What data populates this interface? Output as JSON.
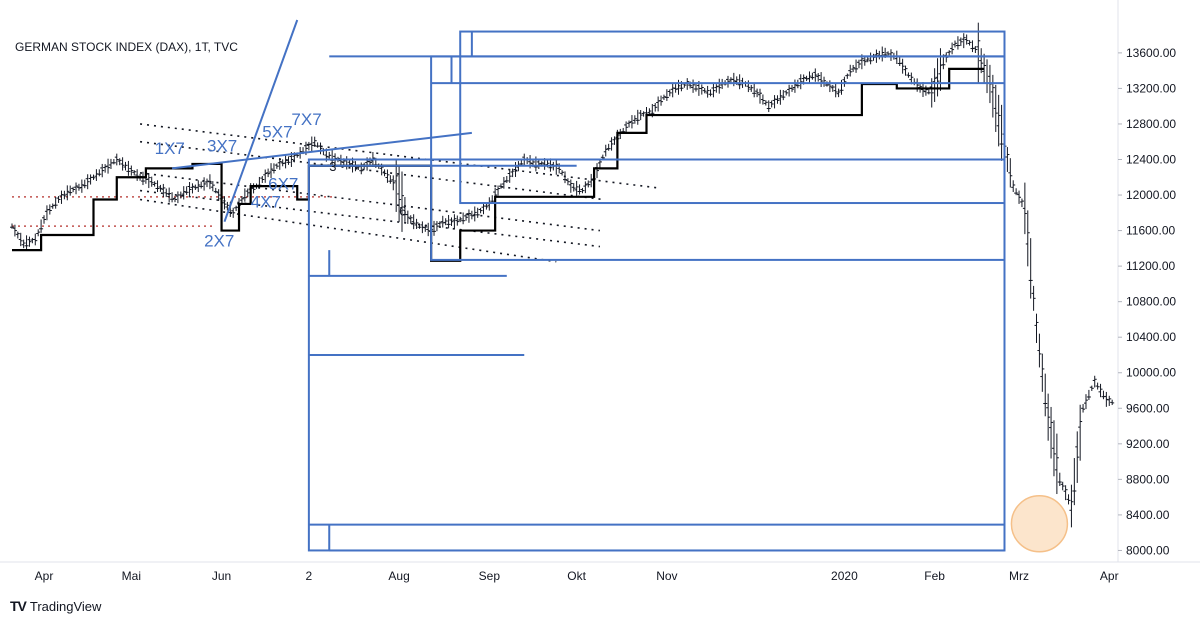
{
  "chart_data": {
    "type": "line",
    "title": "GERMAN STOCK INDEX (DAX), 1T, TVC",
    "y_axis": {
      "ticks": [
        8000,
        8400,
        8800,
        9200,
        9600,
        10000,
        10400,
        10800,
        11200,
        11600,
        12000,
        12400,
        12800,
        13200,
        13600
      ],
      "tick_labels": [
        "8000.00",
        "8400.00",
        "8800.00",
        "9200.00",
        "9600.00",
        "10000.00",
        "10400.00",
        "10800.00",
        "11200.00",
        "11600.00",
        "12000.00",
        "12400.00",
        "12800.00",
        "13200.00",
        "13600.00"
      ],
      "range": [
        7870,
        13970
      ]
    },
    "x_axis": {
      "labels": [
        "Apr",
        "Mai",
        "Jun",
        "2",
        "Aug",
        "Sep",
        "Okt",
        "Nov",
        "2020",
        "Feb",
        "Mrz",
        "Apr"
      ],
      "label_days": [
        11,
        41,
        72,
        102,
        133,
        164,
        194,
        225,
        286,
        317,
        346,
        377
      ],
      "range": [
        0,
        380
      ]
    },
    "series": [
      {
        "type": "daily-bars",
        "points": [
          [
            0,
            11650
          ],
          [
            4,
            11450
          ],
          [
            8,
            11500
          ],
          [
            12,
            11800
          ],
          [
            16,
            11950
          ],
          [
            20,
            12050
          ],
          [
            24,
            12100
          ],
          [
            28,
            12200
          ],
          [
            32,
            12300
          ],
          [
            36,
            12400
          ],
          [
            40,
            12300
          ],
          [
            44,
            12200
          ],
          [
            48,
            12150
          ],
          [
            52,
            12050
          ],
          [
            56,
            11950
          ],
          [
            60,
            12050
          ],
          [
            64,
            12100
          ],
          [
            68,
            12150
          ],
          [
            72,
            11950
          ],
          [
            76,
            11800
          ],
          [
            80,
            12000
          ],
          [
            84,
            12100
          ],
          [
            88,
            12250
          ],
          [
            92,
            12350
          ],
          [
            96,
            12400
          ],
          [
            100,
            12500
          ],
          [
            104,
            12600
          ],
          [
            108,
            12450
          ],
          [
            112,
            12400
          ],
          [
            116,
            12350
          ],
          [
            120,
            12300
          ],
          [
            124,
            12400
          ],
          [
            128,
            12250
          ],
          [
            132,
            12100
          ],
          [
            136,
            11750
          ],
          [
            140,
            11650
          ],
          [
            144,
            11600
          ],
          [
            148,
            11700
          ],
          [
            152,
            11700
          ],
          [
            156,
            11750
          ],
          [
            160,
            11800
          ],
          [
            164,
            11900
          ],
          [
            168,
            12100
          ],
          [
            172,
            12250
          ],
          [
            176,
            12400
          ],
          [
            180,
            12350
          ],
          [
            184,
            12350
          ],
          [
            188,
            12300
          ],
          [
            192,
            12100
          ],
          [
            196,
            12050
          ],
          [
            200,
            12200
          ],
          [
            204,
            12500
          ],
          [
            208,
            12650
          ],
          [
            212,
            12800
          ],
          [
            216,
            12900
          ],
          [
            220,
            12950
          ],
          [
            224,
            13100
          ],
          [
            228,
            13200
          ],
          [
            232,
            13250
          ],
          [
            236,
            13200
          ],
          [
            240,
            13150
          ],
          [
            244,
            13250
          ],
          [
            248,
            13300
          ],
          [
            252,
            13250
          ],
          [
            256,
            13150
          ],
          [
            260,
            13000
          ],
          [
            264,
            13100
          ],
          [
            268,
            13200
          ],
          [
            272,
            13300
          ],
          [
            276,
            13350
          ],
          [
            280,
            13250
          ],
          [
            284,
            13150
          ],
          [
            288,
            13400
          ],
          [
            292,
            13500
          ],
          [
            296,
            13550
          ],
          [
            300,
            13600
          ],
          [
            304,
            13550
          ],
          [
            308,
            13350
          ],
          [
            312,
            13200
          ],
          [
            316,
            13150
          ],
          [
            320,
            13500
          ],
          [
            324,
            13700
          ],
          [
            328,
            13750
          ],
          [
            332,
            13600
          ],
          [
            336,
            13250
          ],
          [
            340,
            12700
          ],
          [
            344,
            12100
          ],
          [
            348,
            11850
          ],
          [
            352,
            10500
          ],
          [
            356,
            9500
          ],
          [
            360,
            8800
          ],
          [
            364,
            8500
          ],
          [
            368,
            9600
          ],
          [
            372,
            9900
          ],
          [
            376,
            9700
          ],
          [
            379,
            9650
          ]
        ]
      },
      {
        "type": "step",
        "points": [
          [
            0,
            11380
          ],
          [
            10,
            11380
          ],
          [
            10,
            11550
          ],
          [
            28,
            11550
          ],
          [
            28,
            11950
          ],
          [
            36,
            11950
          ],
          [
            36,
            12200
          ],
          [
            46,
            12200
          ],
          [
            46,
            12300
          ],
          [
            62,
            12300
          ],
          [
            62,
            12350
          ],
          [
            72,
            12350
          ],
          [
            72,
            11600
          ],
          [
            78,
            11600
          ],
          [
            78,
            11900
          ],
          [
            82,
            11900
          ],
          [
            82,
            12100
          ],
          [
            98,
            12100
          ],
          [
            98,
            11950
          ],
          [
            102,
            11950
          ],
          [
            102,
            12330
          ],
          [
            144,
            12330
          ],
          [
            144,
            11260
          ],
          [
            154,
            11260
          ],
          [
            154,
            11600
          ],
          [
            166,
            11600
          ],
          [
            166,
            11980
          ],
          [
            200,
            11980
          ],
          [
            200,
            12300
          ],
          [
            208,
            12300
          ],
          [
            208,
            12700
          ],
          [
            218,
            12700
          ],
          [
            218,
            12900
          ],
          [
            292,
            12900
          ],
          [
            292,
            13250
          ],
          [
            304,
            13250
          ],
          [
            304,
            13200
          ],
          [
            322,
            13200
          ],
          [
            322,
            13420
          ],
          [
            334,
            13420
          ]
        ]
      }
    ],
    "rectangles": [
      {
        "x": [
          102,
          341
        ],
        "y": [
          8000,
          12400
        ]
      },
      {
        "x": [
          144,
          341
        ],
        "y": [
          11270,
          13560
        ]
      },
      {
        "x": [
          154,
          341
        ],
        "y": [
          11910,
          13840
        ]
      }
    ],
    "horizontal_lines": [
      {
        "x": [
          102,
          341
        ],
        "y": 8290
      },
      {
        "x": [
          102,
          176
        ],
        "y": 10200
      },
      {
        "x": [
          102,
          170
        ],
        "y": 11090
      },
      {
        "x": [
          102,
          194
        ],
        "y": 12330
      },
      {
        "x": [
          144,
          341
        ],
        "y": 13260
      },
      {
        "x": [
          109,
          341
        ],
        "y": 8000
      },
      {
        "x": [
          109,
          341
        ],
        "y": 13560
      }
    ],
    "vertical_lines": [
      {
        "x": 109,
        "y": [
          8000,
          8290
        ]
      },
      {
        "x": 109,
        "y": [
          11090,
          11380
        ]
      },
      {
        "x": 151,
        "y": [
          13260,
          13560
        ]
      },
      {
        "x": 158,
        "y": [
          13560,
          13840
        ]
      }
    ],
    "trendlines": [
      {
        "x": [
          73,
          98
        ],
        "y": [
          11700,
          13970
        ]
      },
      {
        "x": [
          55,
          158
        ],
        "y": [
          12300,
          12700
        ]
      }
    ],
    "dotted_lines": [
      {
        "x": [
          44,
          222
        ],
        "y": [
          12800,
          12080
        ]
      },
      {
        "x": [
          44,
          203
        ],
        "y": [
          12600,
          11950
        ]
      },
      {
        "x": [
          44,
          202
        ],
        "y": [
          12250,
          11600
        ]
      },
      {
        "x": [
          44,
          202
        ],
        "y": [
          12050,
          11420
        ]
      },
      {
        "x": [
          44,
          187
        ],
        "y": [
          11950,
          11250
        ]
      }
    ],
    "red_dotted_lines": [
      {
        "x": [
          0,
          70
        ],
        "y": 11650
      },
      {
        "x": [
          0,
          110
        ],
        "y": 11980
      }
    ],
    "annotations": [
      {
        "text": "1X7",
        "x": 49,
        "y": 12460
      },
      {
        "text": "3X7",
        "x": 67,
        "y": 12490
      },
      {
        "text": "2X7",
        "x": 66,
        "y": 11420
      },
      {
        "text": "5X7",
        "x": 86,
        "y": 12650
      },
      {
        "text": "7X7",
        "x": 96,
        "y": 12790
      },
      {
        "text": "6X7",
        "x": 88,
        "y": 12060
      },
      {
        "text": "4X7",
        "x": 82,
        "y": 11860
      }
    ],
    "black_labels": [
      {
        "text": "3",
        "x": 109,
        "y": 12270
      },
      {
        "text": "6",
        "x": 133,
        "y": 11770
      }
    ],
    "highlight_circle": {
      "x": 353,
      "y": 8300
    },
    "colors": {
      "background": "#ffffff",
      "drawings": "#4472c4",
      "price_bars": "#131722",
      "step_line": "#000000",
      "red_dots": "#c0504d",
      "circle_fill": "#fbe0c3",
      "circle_stroke": "#f5c089",
      "text": "#131722"
    }
  },
  "branding": {
    "logo": "TV",
    "name": "TradingView"
  }
}
